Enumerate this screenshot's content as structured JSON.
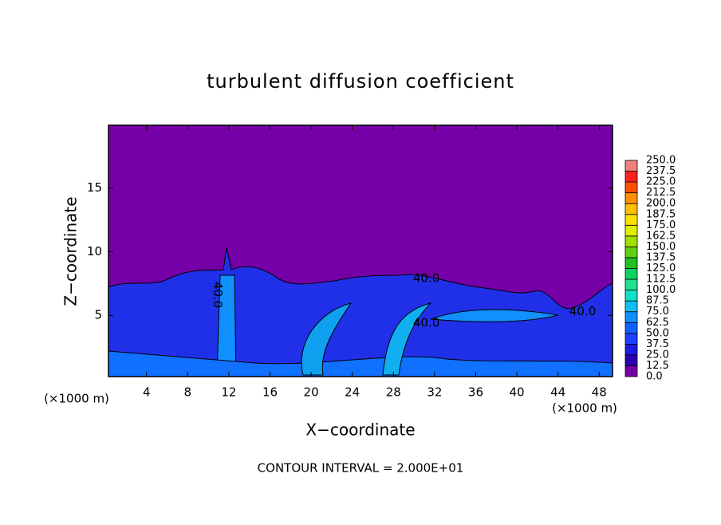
{
  "chart_data": {
    "type": "contour",
    "title": "turbulent diffusion coefficient",
    "xlabel": "X−coordinate",
    "ylabel": "Z−coordinate",
    "xunit": "(×1000 m)",
    "yunit": "(×1000 m)",
    "footer": "CONTOUR INTERVAL = 2.000E+01",
    "xlim": [
      0.3,
      49.3
    ],
    "ylim": [
      0.2,
      19.9
    ],
    "xticks": [
      4,
      8,
      12,
      16,
      20,
      24,
      28,
      32,
      36,
      40,
      44,
      48
    ],
    "yticks": [
      5,
      10,
      15
    ],
    "contour_labels": [
      {
        "value": 40,
        "label": "40.0",
        "x": 31.2,
        "y": 7.9,
        "vertical": false
      },
      {
        "value": 40,
        "label": "40.0",
        "x": 10.9,
        "y": 6.6,
        "vertical": true
      },
      {
        "value": 40,
        "label": "40.0",
        "x": 31.2,
        "y": 4.4,
        "vertical": false
      },
      {
        "value": 40,
        "label": "40.0",
        "x": 46.4,
        "y": 5.3,
        "vertical": false
      }
    ],
    "colorbar": {
      "levels": [
        {
          "value": 0,
          "label": "0.0"
        },
        {
          "value": 12.5,
          "label": "12.5"
        },
        {
          "value": 25,
          "label": "25.0"
        },
        {
          "value": 37.5,
          "label": "37.5"
        },
        {
          "value": 50,
          "label": "50.0"
        },
        {
          "value": 62.5,
          "label": "62.5"
        },
        {
          "value": 75,
          "label": "75.0"
        },
        {
          "value": 87.5,
          "label": "87.5"
        },
        {
          "value": 100,
          "label": "100.0"
        },
        {
          "value": 112.5,
          "label": "112.5"
        },
        {
          "value": 125,
          "label": "125.0"
        },
        {
          "value": 137.5,
          "label": "137.5"
        },
        {
          "value": 150,
          "label": "150.0"
        },
        {
          "value": 162.5,
          "label": "162.5"
        },
        {
          "value": 175,
          "label": "175.0"
        },
        {
          "value": 187.5,
          "label": "187.5"
        },
        {
          "value": 200,
          "label": "200.0"
        },
        {
          "value": 212.5,
          "label": "212.5"
        },
        {
          "value": 225,
          "label": "225.0"
        },
        {
          "value": 237.5,
          "label": "237.5"
        },
        {
          "value": 250,
          "label": "250.0"
        }
      ],
      "colors": [
        "#7600a8",
        "#2c00b0",
        "#1a1ae0",
        "#2040ff",
        "#1060ff",
        "#1090ff",
        "#10c0f0",
        "#10e0c8",
        "#20e090",
        "#10d060",
        "#20c020",
        "#60d010",
        "#a0e000",
        "#e0f000",
        "#ffe000",
        "#ffc000",
        "#ff9000",
        "#ff5000",
        "#ff2020",
        "#f08080"
      ]
    }
  }
}
